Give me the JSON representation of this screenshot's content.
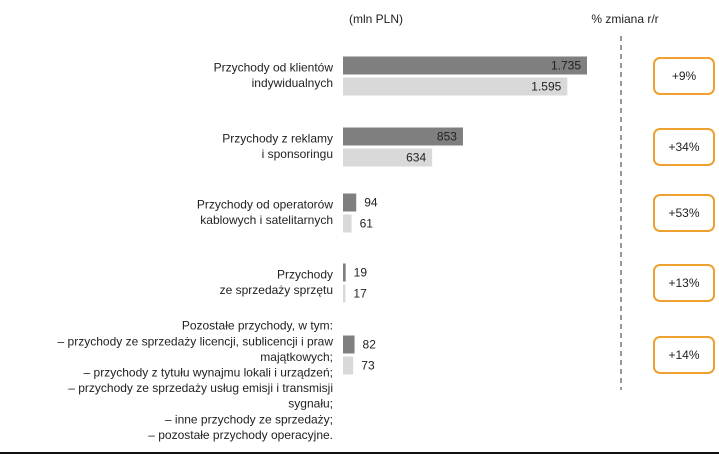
{
  "chart_data": {
    "type": "bar",
    "header_left": "(mln PLN)",
    "header_right": "% zmiana r/r",
    "categories": [
      [
        "Przychody od klientów",
        "indywidualnych"
      ],
      [
        "Przychody z reklamy",
        "i sponsoringu"
      ],
      [
        "Przychody od operatorów",
        "kablowych i satelitarnych"
      ],
      [
        "Przychody",
        "ze sprzedaży sprzętu"
      ],
      [
        "Pozostałe przychody, w tym:",
        "– przychody ze sprzedaży licencji, sublicencji i praw",
        "majątkowych;",
        "– przychody z tytułu wynajmu lokali i urządzeń;",
        "– przychody ze sprzedaży usług emisji i transmisji",
        "sygnału;",
        "– inne przychody ze sprzedaży;",
        "– pozostałe przychody operacyjne."
      ]
    ],
    "series": [
      {
        "color": "#7f7f7f",
        "values": [
          1735,
          853,
          94,
          19,
          82
        ],
        "value_labels": [
          "1.735",
          "853",
          "94",
          "19",
          "82"
        ]
      },
      {
        "color": "#d9d9d9",
        "values": [
          1595,
          634,
          61,
          17,
          73
        ],
        "value_labels": [
          "1.595",
          "634",
          "61",
          "17",
          "73"
        ]
      }
    ],
    "changes": [
      "+9%",
      "+34%",
      "+53%",
      "+13%",
      "+14%"
    ],
    "change_box_color": "#f0a030"
  }
}
